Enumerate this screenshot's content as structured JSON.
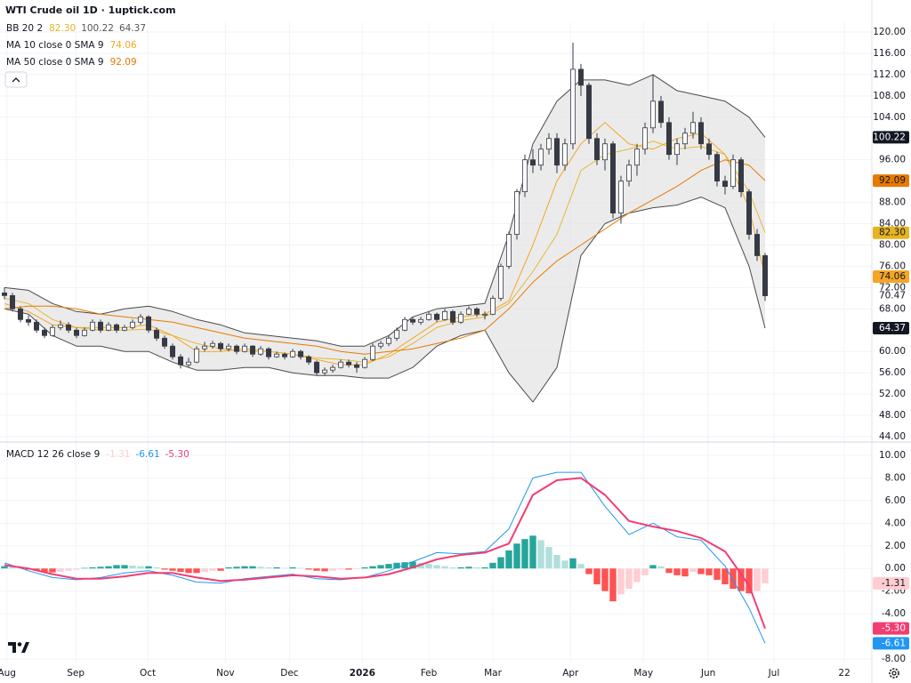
{
  "chart_data": [
    {
      "type": "candlestick",
      "title": "WTI Crude oil  1D · 1uptick.com",
      "xlim": [
        0,
        108
      ],
      "ylim": [
        44,
        120
      ],
      "yticks": [
        {
          "value": 44,
          "label": "44.00"
        },
        {
          "value": 48,
          "label": "48.00"
        },
        {
          "value": 52,
          "label": "52.00"
        },
        {
          "value": 56,
          "label": "56.00"
        },
        {
          "value": 60,
          "label": "60.00"
        },
        {
          "value": 68,
          "label": "68.00"
        },
        {
          "value": 72,
          "label": "72.00"
        },
        {
          "value": 76,
          "label": "76.00"
        },
        {
          "value": 80,
          "label": "80.00"
        },
        {
          "value": 84,
          "label": "84.00"
        },
        {
          "value": 88,
          "label": "88.00"
        },
        {
          "value": 96,
          "label": "96.00"
        },
        {
          "value": 104,
          "label": "104.00"
        },
        {
          "value": 108,
          "label": "108.00"
        },
        {
          "value": 112,
          "label": "112.00"
        },
        {
          "value": 116,
          "label": "116.00"
        },
        {
          "value": 120,
          "label": "120.00"
        }
      ],
      "grid": true,
      "up_color": "#ffffff",
      "down_color": "#363a45",
      "wick_color": "#363a45",
      "ohlc": [
        [
          71,
          72,
          69.8,
          70.5
        ],
        [
          70.5,
          71,
          67.5,
          68
        ],
        [
          68,
          68.5,
          65.5,
          66
        ],
        [
          66,
          66.8,
          64.8,
          65.5
        ],
        [
          65.5,
          66,
          63.5,
          64
        ],
        [
          64,
          64.5,
          62.5,
          63
        ],
        [
          63,
          65,
          62.8,
          64.5
        ],
        [
          64.5,
          65.8,
          64,
          65
        ],
        [
          65,
          65.5,
          63.5,
          64
        ],
        [
          64,
          64.5,
          62.5,
          63
        ],
        [
          63,
          64.5,
          62.8,
          64
        ],
        [
          64,
          66,
          63.8,
          65.5
        ],
        [
          65.5,
          66,
          63.5,
          64
        ],
        [
          64,
          65.5,
          63.8,
          65
        ],
        [
          65,
          65.3,
          63.5,
          64
        ],
        [
          64,
          65,
          63.8,
          64.5
        ],
        [
          64.5,
          66,
          64.2,
          65.5
        ],
        [
          65.5,
          67,
          65,
          66.5
        ],
        [
          66.5,
          66.8,
          63.5,
          64
        ],
        [
          64,
          64.5,
          62,
          62.5
        ],
        [
          62.5,
          63,
          60.5,
          61
        ],
        [
          61,
          61.5,
          58.5,
          59
        ],
        [
          59,
          59.5,
          56.8,
          57.5
        ],
        [
          57.5,
          58.8,
          57,
          58
        ],
        [
          58,
          61,
          57.8,
          60.5
        ],
        [
          60.5,
          61.8,
          60,
          61
        ],
        [
          61,
          62,
          60.5,
          61.5
        ],
        [
          61.5,
          61.8,
          60,
          60.5
        ],
        [
          60.5,
          61.5,
          60,
          61
        ],
        [
          61,
          61.3,
          59.5,
          60
        ],
        [
          60,
          61.5,
          59.8,
          61
        ],
        [
          61,
          61.2,
          59,
          59.5
        ],
        [
          59.5,
          61,
          59.2,
          60.5
        ],
        [
          60.5,
          60.8,
          58.5,
          59
        ],
        [
          59,
          60,
          58.8,
          59.5
        ],
        [
          59.5,
          59.8,
          58.5,
          59
        ],
        [
          59,
          60.5,
          58.8,
          60
        ],
        [
          60,
          60.3,
          58.5,
          59
        ],
        [
          59,
          59.3,
          57.5,
          58
        ],
        [
          58,
          58.3,
          55.5,
          56
        ],
        [
          56,
          57,
          55.5,
          56.5
        ],
        [
          56.5,
          57.5,
          56,
          57
        ],
        [
          57,
          58.5,
          56.8,
          58
        ],
        [
          58,
          58.5,
          57,
          57.5
        ],
        [
          57.5,
          58,
          56,
          57
        ],
        [
          57,
          59,
          56.8,
          58.5
        ],
        [
          58.5,
          61.5,
          58.2,
          61
        ],
        [
          61,
          62,
          60.5,
          61.5
        ],
        [
          61.5,
          63,
          61,
          62.5
        ],
        [
          62.5,
          64.5,
          62,
          64
        ],
        [
          64,
          66.5,
          63.8,
          66
        ],
        [
          66,
          66.5,
          65,
          65.5
        ],
        [
          65.5,
          66.5,
          65,
          66
        ],
        [
          66,
          67.5,
          65.8,
          67
        ],
        [
          67,
          67.3,
          65.5,
          66
        ],
        [
          66,
          68,
          65.8,
          67.5
        ],
        [
          67.5,
          67.8,
          65,
          65.5
        ],
        [
          65.5,
          67.5,
          65.2,
          67
        ],
        [
          67,
          68.5,
          66.8,
          68
        ],
        [
          68,
          68.3,
          66.5,
          67
        ],
        [
          67,
          67.5,
          66,
          67
        ],
        [
          67,
          70.5,
          66.8,
          70
        ],
        [
          70,
          76.5,
          69.5,
          76
        ],
        [
          76,
          82.5,
          75.5,
          82
        ],
        [
          82,
          90.5,
          81,
          90
        ],
        [
          90,
          97,
          89,
          96
        ],
        [
          96,
          98,
          93.5,
          95
        ],
        [
          95,
          99,
          94,
          98
        ],
        [
          98,
          101,
          97,
          100
        ],
        [
          100,
          101,
          93.5,
          95
        ],
        [
          95,
          100,
          94,
          99
        ],
        [
          99,
          118,
          98,
          113
        ],
        [
          113,
          114,
          108,
          110
        ],
        [
          110,
          110.5,
          99,
          100
        ],
        [
          100,
          101,
          95,
          96
        ],
        [
          96,
          100,
          94,
          99
        ],
        [
          99,
          99.5,
          85,
          86
        ],
        [
          86,
          93,
          84,
          92
        ],
        [
          92,
          96,
          91,
          95
        ],
        [
          95,
          99,
          93,
          98
        ],
        [
          98,
          103,
          97,
          102
        ],
        [
          102,
          112,
          101,
          107
        ],
        [
          107,
          108,
          102,
          103
        ],
        [
          103,
          104,
          96,
          97
        ],
        [
          97,
          100,
          95,
          99
        ],
        [
          99,
          102,
          98,
          101
        ],
        [
          101,
          105,
          100,
          103
        ],
        [
          103,
          104,
          98,
          99
        ],
        [
          99,
          100,
          96,
          97
        ],
        [
          97,
          97.5,
          91,
          92
        ],
        [
          92,
          93,
          89.5,
          91
        ],
        [
          91,
          97,
          90.5,
          96
        ],
        [
          96,
          96.5,
          89,
          90
        ],
        [
          90,
          90.5,
          81,
          82
        ],
        [
          82,
          83,
          77,
          78
        ],
        [
          78,
          78.5,
          69.5,
          70.47
        ]
      ],
      "last_label": "70.47",
      "line_x": [
        0,
        3,
        6,
        9,
        12,
        15,
        18,
        21,
        24,
        27,
        30,
        33,
        36,
        39,
        42,
        45,
        48,
        51,
        54,
        57,
        60,
        63,
        66,
        69,
        72,
        75,
        78,
        81,
        84,
        87,
        90,
        93,
        95
      ],
      "bb": {
        "name": "BB 20 2",
        "line_color": "#4a4a4a",
        "fill": "#e4e4e4",
        "basis_color": "#e6b422",
        "upper": [
          72,
          71.5,
          69,
          67.5,
          67,
          68,
          68.5,
          67.5,
          66,
          65,
          63.5,
          63,
          62.5,
          62,
          61,
          61,
          63,
          66.5,
          68,
          68.5,
          69,
          82,
          99,
          107,
          111,
          111,
          110,
          112,
          109,
          108,
          107,
          104,
          100.22
        ],
        "basis": [
          70,
          69,
          66,
          64.5,
          64,
          64,
          64.2,
          63,
          61.5,
          60.5,
          60,
          60,
          59.5,
          58.8,
          58.5,
          58,
          59,
          61.5,
          64.5,
          65.8,
          66.5,
          69,
          75,
          82,
          94,
          97,
          98,
          99.5,
          98,
          98.5,
          97,
          90,
          82.3
        ],
        "lower": [
          68,
          67,
          63,
          61,
          61,
          60,
          60,
          58,
          56.5,
          56.5,
          57,
          57,
          56,
          55.5,
          55.5,
          55,
          55,
          57,
          61,
          63,
          64,
          56,
          50.5,
          57,
          78,
          84,
          86,
          87,
          87.5,
          89,
          87,
          76,
          64.37
        ],
        "value_labels": {
          "basis": "82.30",
          "upper": "100.22",
          "lower": "64.37"
        }
      },
      "ma": [
        {
          "name": "MA 10 close 0 SMA 9",
          "color": "#f5a623",
          "values": [
            69,
            67.5,
            65,
            64.5,
            64.5,
            64.5,
            65,
            63,
            60,
            60,
            60.5,
            60,
            59.5,
            58.5,
            57.5,
            57.5,
            59.5,
            62.5,
            65.5,
            66.5,
            67,
            69.5,
            80,
            92,
            99,
            103,
            99,
            98,
            100,
            101,
            97,
            87,
            74.06
          ],
          "value_label": "74.06"
        },
        {
          "name": "MA 50 close 0 SMA 9",
          "color": "#e67a00",
          "values": [
            68,
            68.5,
            68.5,
            68,
            67,
            66.5,
            66,
            65.5,
            64.5,
            63.5,
            62.5,
            62,
            61.5,
            61,
            60,
            59.5,
            60,
            60.5,
            61.5,
            62.5,
            64,
            68,
            73,
            77,
            80,
            83,
            86,
            88.5,
            91,
            94,
            96,
            95,
            92.09
          ],
          "value_label": "92.09"
        }
      ]
    },
    {
      "type": "macd",
      "name": "MACD 12 26 close 9",
      "xlim": [
        0,
        108
      ],
      "xticks": [
        {
          "value": 0.3,
          "label": "Aug"
        },
        {
          "value": 8.9,
          "label": "Sep"
        },
        {
          "value": 17.9,
          "label": "Oct"
        },
        {
          "value": 27.6,
          "label": "Nov"
        },
        {
          "value": 35.6,
          "label": "Dec"
        },
        {
          "value": 44.7,
          "label": "2026"
        },
        {
          "value": 53,
          "label": "Feb"
        },
        {
          "value": 61,
          "label": "Mar"
        },
        {
          "value": 70.7,
          "label": "Apr"
        },
        {
          "value": 79.8,
          "label": "May"
        },
        {
          "value": 87.9,
          "label": "Jun"
        },
        {
          "value": 96.1,
          "label": "Jul"
        },
        {
          "value": 104.9,
          "label": "22"
        }
      ],
      "ylim": [
        -8,
        10
      ],
      "yticks": [
        {
          "value": -8,
          "label": "-8.00"
        },
        {
          "value": -4,
          "label": "-4.00"
        },
        {
          "value": -2,
          "label": "-2.00"
        },
        {
          "value": 0,
          "label": "0.00"
        },
        {
          "value": 2,
          "label": "2.00"
        },
        {
          "value": 4,
          "label": "4.00"
        },
        {
          "value": 6,
          "label": "6.00"
        },
        {
          "value": 8,
          "label": "8.00"
        },
        {
          "value": 10,
          "label": "10.00"
        }
      ],
      "histogram": {
        "colors": {
          "up_rising": "#26a69a",
          "up_falling": "#b2dfdb",
          "down_falling": "#ff5252",
          "down_rising": "#ffcdd2"
        },
        "values": [
          0.2,
          0.15,
          0.1,
          -0.1,
          -0.2,
          -0.3,
          -0.35,
          -0.3,
          -0.2,
          -0.1,
          0.05,
          0.1,
          0.15,
          0.2,
          0.3,
          0.3,
          0.25,
          0.2,
          0.2,
          0.1,
          -0.1,
          -0.2,
          -0.3,
          -0.4,
          -0.4,
          -0.3,
          -0.2,
          -0.2,
          0.1,
          0.15,
          0.2,
          0.2,
          0.15,
          0.1,
          0.1,
          0.05,
          0.1,
          0.05,
          -0.1,
          -0.2,
          -0.25,
          -0.2,
          -0.1,
          -0.1,
          -0.05,
          0.1,
          0.2,
          0.3,
          0.4,
          0.5,
          0.55,
          0.6,
          0.5,
          0.4,
          0.3,
          0.2,
          0.1,
          0.1,
          0.15,
          0.1,
          0.1,
          0.5,
          1.0,
          1.6,
          2.2,
          2.6,
          2.9,
          2.5,
          1.9,
          1.2,
          0.7,
          0.9,
          0.4,
          -0.5,
          -1.4,
          -2.0,
          -2.9,
          -2.3,
          -1.8,
          -1.2,
          -0.6,
          0.3,
          0.2,
          -0.4,
          -0.6,
          -0.7,
          -0.3,
          -0.5,
          -0.6,
          -1.0,
          -1.4,
          -1.8,
          -2.0,
          -2.2,
          -2.0,
          -1.31
        ],
        "value_label": "-1.31",
        "label_color": "#ffcdd2",
        "text_color": "#131722"
      },
      "macd": {
        "color": "#2196f3",
        "values": [
          0.5,
          -0.2,
          -0.8,
          -1.0,
          -0.8,
          -0.4,
          -0.2,
          -0.6,
          -1.2,
          -1.3,
          -0.9,
          -0.7,
          -0.5,
          -0.9,
          -1.0,
          -0.8,
          -0.2,
          0.6,
          1.4,
          1.3,
          1.5,
          3.5,
          8.0,
          8.5,
          8.5,
          5.5,
          3.0,
          4.0,
          2.8,
          2.5,
          0.2,
          -3.5,
          -6.61
        ],
        "value_label": "-6.61"
      },
      "signal": {
        "color": "#f23d72",
        "values": [
          0.3,
          0.0,
          -0.5,
          -0.9,
          -0.9,
          -0.7,
          -0.4,
          -0.4,
          -0.8,
          -1.1,
          -1.0,
          -0.8,
          -0.6,
          -0.7,
          -0.9,
          -0.8,
          -0.5,
          0.1,
          0.8,
          1.2,
          1.4,
          2.2,
          6.5,
          7.8,
          8.0,
          6.5,
          4.2,
          3.7,
          3.3,
          2.7,
          1.5,
          -1.5,
          -5.3
        ],
        "value_label": "-5.30"
      }
    }
  ]
}
